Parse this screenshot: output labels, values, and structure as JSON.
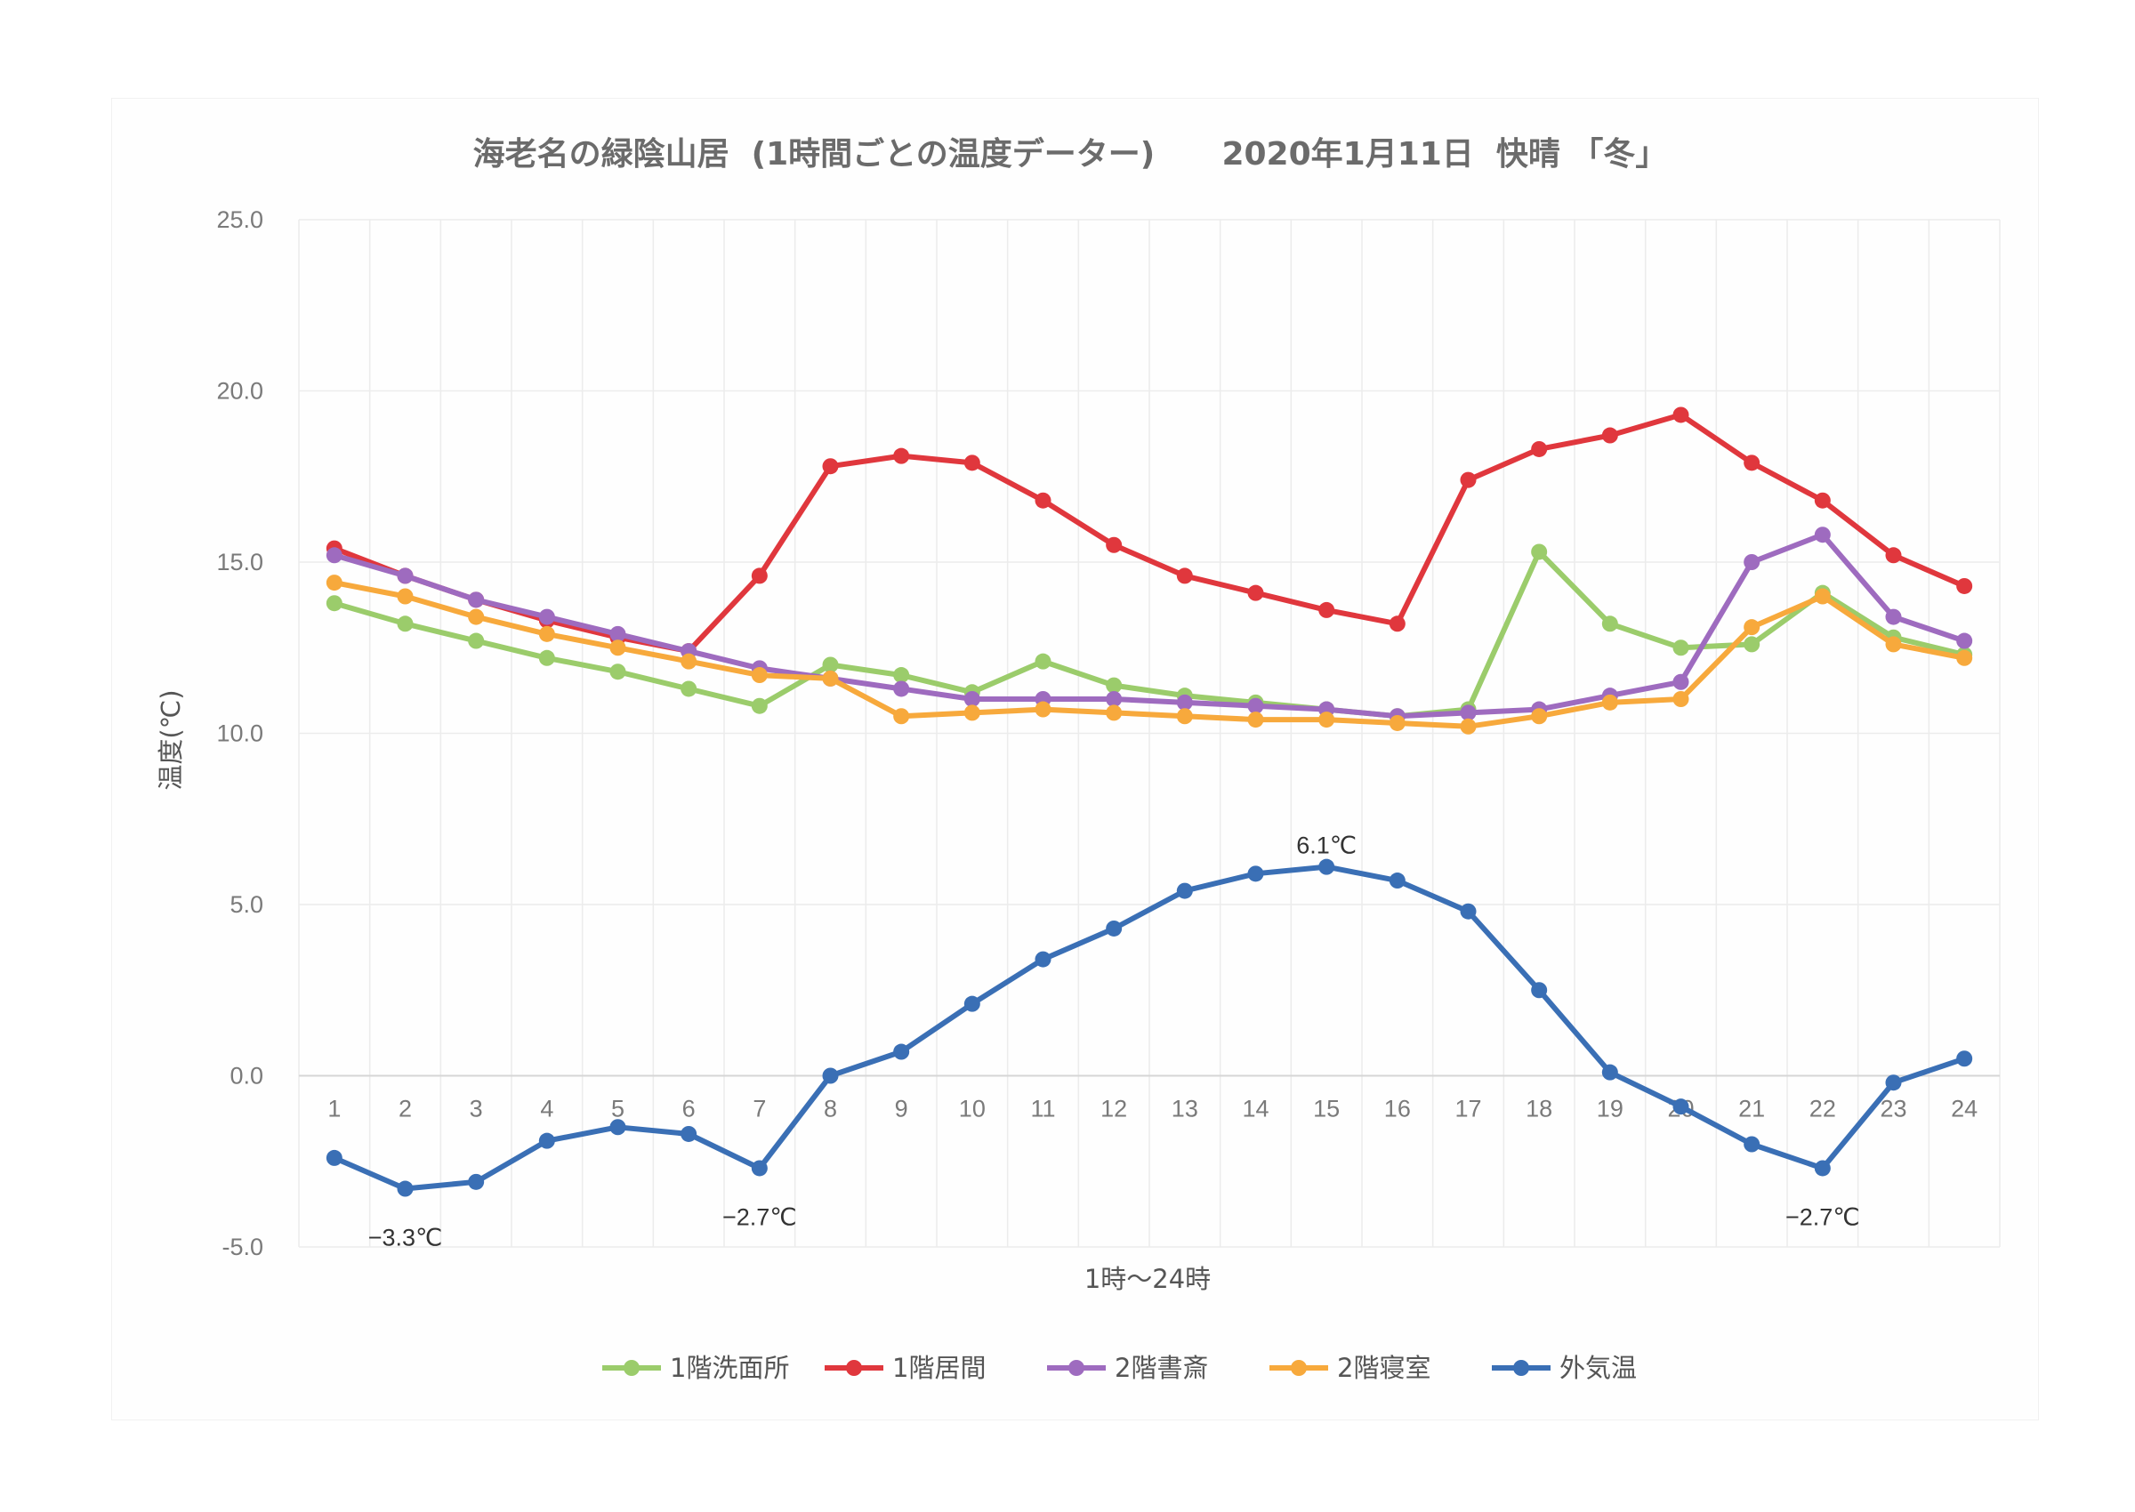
{
  "chart_data": {
    "type": "line",
    "title": "海老名の緑陰山居  (1時間ごとの温度データー)      2020年1月11日  快晴 「冬」",
    "xlabel": "1時～24時",
    "ylabel": "温度(℃)",
    "ylim": [
      -5,
      25
    ],
    "ytick_values": [
      -5,
      0,
      5,
      10,
      15,
      20,
      25
    ],
    "ytick_labels": [
      "-5.0",
      "0.0",
      "5.0",
      "10.0",
      "15.0",
      "20.0",
      "25.0"
    ],
    "categories": [
      "1",
      "2",
      "3",
      "4",
      "5",
      "6",
      "7",
      "8",
      "9",
      "10",
      "11",
      "12",
      "13",
      "14",
      "15",
      "16",
      "17",
      "18",
      "19",
      "20",
      "21",
      "22",
      "23",
      "24"
    ],
    "grid": true,
    "legend_position": "bottom",
    "series": [
      {
        "name": "1階洗面所",
        "color": "#9bcc6b",
        "values": [
          13.8,
          13.2,
          12.7,
          12.2,
          11.8,
          11.3,
          10.8,
          12.0,
          11.7,
          11.2,
          12.1,
          11.4,
          11.1,
          10.9,
          10.7,
          10.5,
          10.7,
          15.3,
          13.2,
          12.5,
          12.6,
          14.1,
          12.8,
          12.3
        ]
      },
      {
        "name": "1階居間",
        "color": "#e0373d",
        "values": [
          15.4,
          14.6,
          13.9,
          13.3,
          12.8,
          12.4,
          14.6,
          17.8,
          18.1,
          17.9,
          16.8,
          15.5,
          14.6,
          14.1,
          13.6,
          13.2,
          17.4,
          18.3,
          18.7,
          19.3,
          17.9,
          16.8,
          15.2,
          14.3
        ]
      },
      {
        "name": "2階書斎",
        "color": "#9e6bbf",
        "values": [
          15.2,
          14.6,
          13.9,
          13.4,
          12.9,
          12.4,
          11.9,
          11.6,
          11.3,
          11.0,
          11.0,
          11.0,
          10.9,
          10.8,
          10.7,
          10.5,
          10.6,
          10.7,
          11.1,
          11.5,
          15.0,
          15.8,
          13.4,
          12.7
        ]
      },
      {
        "name": "2階寝室",
        "color": "#f7a93c",
        "values": [
          14.4,
          14.0,
          13.4,
          12.9,
          12.5,
          12.1,
          11.7,
          11.6,
          10.5,
          10.6,
          10.7,
          10.6,
          10.5,
          10.4,
          10.4,
          10.3,
          10.2,
          10.5,
          10.9,
          11.0,
          13.1,
          14.0,
          12.6,
          12.2
        ]
      },
      {
        "name": "外気温",
        "color": "#3a6fb5",
        "values": [
          -2.4,
          -3.3,
          -3.1,
          -1.9,
          -1.5,
          -1.7,
          -2.7,
          0.0,
          0.7,
          2.1,
          3.4,
          4.3,
          5.4,
          5.9,
          6.1,
          5.7,
          4.8,
          2.5,
          0.1,
          -0.9,
          -2.0,
          -2.7,
          -0.2,
          0.5
        ]
      }
    ],
    "annotations": [
      {
        "text": "−3.3℃",
        "x": "2",
        "y": -3.3
      },
      {
        "text": "−2.7℃",
        "x": "7",
        "y": -2.7
      },
      {
        "text": "6.1℃",
        "x": "15",
        "y": 6.1
      },
      {
        "text": "−2.7℃",
        "x": "22",
        "y": -2.7
      }
    ]
  }
}
